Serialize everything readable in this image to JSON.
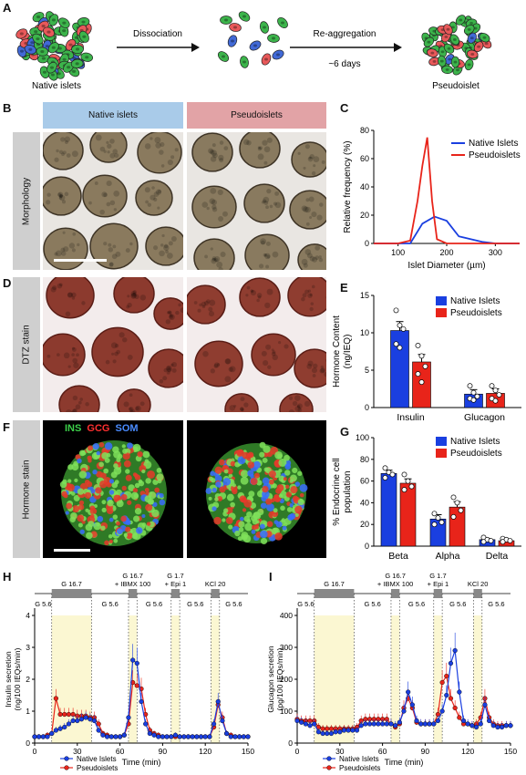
{
  "panel_letters": {
    "A": "A",
    "B": "B",
    "C": "C",
    "D": "D",
    "E": "E",
    "F": "F",
    "G": "G",
    "H": "H",
    "I": "I"
  },
  "schematic": {
    "native_label": "Native islets",
    "step1": "Dissociation",
    "step2": "Re-aggregation",
    "step2_time": "~6 days",
    "pseudo_label": "Pseudoislet"
  },
  "headers": {
    "native": "Native islets",
    "pseudo": "Pseudoislets"
  },
  "row_labels": {
    "morphology": "Morphology",
    "dtz": "DTZ stain",
    "hormone": "Hormone stain"
  },
  "stain_legend": {
    "ins": "INS",
    "gcg": "GCG",
    "som": "SOM"
  },
  "colors": {
    "native": "#1a3fe0",
    "pseudo": "#e8241a",
    "header_native": "#a9cbe9",
    "header_pseudo": "#e2a3a6",
    "cell_green": "#3cb44b",
    "cell_red": "#e8595a",
    "cell_blue": "#4169d6",
    "shade": "#fbf7d2"
  },
  "chart_data": [
    {
      "id": "C",
      "type": "line",
      "xlabel": "Islet Diameter (µm)",
      "ylabel": "Relative frequency (%)",
      "xlim": [
        50,
        350
      ],
      "ylim": [
        0,
        80
      ],
      "xticks": [
        100,
        200,
        300
      ],
      "yticks": [
        0,
        20,
        40,
        60,
        80
      ],
      "legend": "top-right",
      "series": [
        {
          "name": "Native Islets",
          "color": "#1a3fe0",
          "x": [
            50,
            100,
            125,
            150,
            175,
            200,
            225,
            250,
            275,
            300,
            325,
            350
          ],
          "y": [
            0,
            0,
            0,
            14,
            19,
            16,
            5,
            3,
            1,
            0,
            0,
            0
          ]
        },
        {
          "name": "Pseudoislets",
          "color": "#e8241a",
          "x": [
            50,
            100,
            125,
            140,
            150,
            160,
            170,
            180,
            200,
            250,
            300,
            350
          ],
          "y": [
            0,
            0,
            2,
            30,
            55,
            75,
            30,
            3,
            0,
            0,
            0,
            0
          ]
        }
      ]
    },
    {
      "id": "E",
      "type": "bar",
      "ylabel": "Hormone Content (ng/IEQ)",
      "categories": [
        "Insulin",
        "Glucagon"
      ],
      "ylim": [
        0,
        15
      ],
      "yticks": [
        0,
        5,
        10,
        15
      ],
      "legend": "top-right",
      "series": [
        {
          "name": "Native Islets",
          "color": "#1a3fe0",
          "values": [
            10.3,
            1.8
          ],
          "errors": [
            1.2,
            0.6
          ],
          "points": [
            [
              13,
              11,
              10.5,
              8.5,
              8
            ],
            [
              2.9,
              2,
              1.5,
              1.2,
              1
            ]
          ]
        },
        {
          "name": "Pseudoislets",
          "color": "#e8241a",
          "values": [
            6.1,
            1.9
          ],
          "errors": [
            1.0,
            0.6
          ],
          "points": [
            [
              8.3,
              6.9,
              5.5,
              4.5,
              3.4
            ],
            [
              2.9,
              2.3,
              1.7,
              1.2,
              0.9
            ]
          ]
        }
      ]
    },
    {
      "id": "G",
      "type": "bar",
      "ylabel": "% Endocrine cell population",
      "categories": [
        "Beta",
        "Alpha",
        "Delta"
      ],
      "ylim": [
        0,
        100
      ],
      "yticks": [
        0,
        20,
        40,
        60,
        80,
        100
      ],
      "legend": "top-right",
      "series": [
        {
          "name": "Native Islets",
          "color": "#1a3fe0",
          "values": [
            67,
            25,
            6
          ],
          "errors": [
            3,
            4,
            1
          ],
          "points": [
            [
              72,
              68,
              66,
              63
            ],
            [
              30,
              26,
              22,
              20
            ],
            [
              8,
              6,
              5,
              4
            ]
          ]
        },
        {
          "name": "Pseudoislets",
          "color": "#e8241a",
          "values": [
            58,
            36,
            5
          ],
          "errors": [
            4,
            5,
            1
          ],
          "points": [
            [
              66,
              60,
              55,
              52
            ],
            [
              45,
              40,
              33,
              27
            ],
            [
              7,
              6,
              5,
              4
            ]
          ]
        }
      ]
    },
    {
      "id": "H",
      "type": "line",
      "xlabel": "Time (min)",
      "ylabel": "Insulin secretion (ng/100 IEQs/min)",
      "xlim": [
        0,
        150
      ],
      "ylim": [
        0,
        4
      ],
      "xticks": [
        0,
        30,
        60,
        90,
        120,
        150
      ],
      "yticks": [
        0,
        1,
        2,
        3,
        4
      ],
      "legend": "bottom-left",
      "shaded": [
        [
          12,
          40
        ],
        [
          66,
          72
        ],
        [
          96,
          102
        ],
        [
          124,
          130
        ]
      ],
      "protocol": [
        {
          "label": "G 5.6",
          "from": 0,
          "to": 12
        },
        {
          "label": "G 16.7",
          "from": 12,
          "to": 40,
          "bar": true
        },
        {
          "label": "G 5.6",
          "from": 40,
          "to": 66
        },
        {
          "label": "G 16.7\n+ IBMX 100",
          "from": 66,
          "to": 72,
          "bar": true
        },
        {
          "label": "G 5.6",
          "from": 72,
          "to": 96
        },
        {
          "label": "G 1.7\n+ Epi 1",
          "from": 96,
          "to": 102,
          "bar": true
        },
        {
          "label": "G 5.6",
          "from": 102,
          "to": 124
        },
        {
          "label": "KCl 20",
          "from": 124,
          "to": 130,
          "bar": true
        },
        {
          "label": "G 5.6",
          "from": 130,
          "to": 150
        }
      ],
      "series": [
        {
          "name": "Native Islets",
          "color": "#1a3fe0",
          "x": [
            0,
            3,
            6,
            9,
            12,
            15,
            18,
            21,
            24,
            27,
            30,
            33,
            36,
            39,
            42,
            45,
            48,
            51,
            54,
            57,
            60,
            63,
            66,
            69,
            72,
            75,
            78,
            81,
            84,
            87,
            90,
            93,
            96,
            99,
            102,
            105,
            108,
            111,
            114,
            117,
            120,
            123,
            126,
            129,
            132,
            135,
            138,
            141,
            144,
            147,
            150
          ],
          "y": [
            0.2,
            0.2,
            0.2,
            0.2,
            0.3,
            0.4,
            0.45,
            0.5,
            0.6,
            0.7,
            0.7,
            0.75,
            0.8,
            0.75,
            0.7,
            0.4,
            0.25,
            0.2,
            0.2,
            0.2,
            0.2,
            0.25,
            0.8,
            2.6,
            2.5,
            1.3,
            0.6,
            0.3,
            0.25,
            0.2,
            0.2,
            0.2,
            0.2,
            0.25,
            0.2,
            0.2,
            0.2,
            0.2,
            0.2,
            0.2,
            0.2,
            0.2,
            0.6,
            1.3,
            0.7,
            0.3,
            0.2,
            0.2,
            0.2,
            0.2,
            0.2
          ]
        },
        {
          "name": "Pseudoislets",
          "color": "#e8241a",
          "x": [
            0,
            3,
            6,
            9,
            12,
            15,
            18,
            21,
            24,
            27,
            30,
            33,
            36,
            39,
            42,
            45,
            48,
            51,
            54,
            57,
            60,
            63,
            66,
            69,
            72,
            75,
            78,
            81,
            84,
            87,
            90,
            93,
            96,
            99,
            102,
            105,
            108,
            111,
            114,
            117,
            120,
            123,
            126,
            129,
            132,
            135,
            138,
            141,
            144,
            147,
            150
          ],
          "y": [
            0.2,
            0.2,
            0.2,
            0.25,
            0.3,
            1.4,
            0.9,
            0.9,
            0.9,
            0.9,
            0.85,
            0.85,
            0.85,
            0.8,
            0.8,
            0.6,
            0.3,
            0.25,
            0.2,
            0.2,
            0.2,
            0.25,
            0.6,
            1.9,
            1.8,
            1.7,
            0.9,
            0.4,
            0.3,
            0.25,
            0.2,
            0.2,
            0.2,
            0.2,
            0.2,
            0.2,
            0.2,
            0.2,
            0.2,
            0.2,
            0.2,
            0.2,
            0.5,
            1.2,
            0.8,
            0.3,
            0.25,
            0.2,
            0.2,
            0.2,
            0.2
          ]
        }
      ]
    },
    {
      "id": "I",
      "type": "line",
      "xlabel": "Time (min)",
      "ylabel": "Glucagon secretion (pg/100 IEQs/min)",
      "xlim": [
        0,
        150
      ],
      "ylim": [
        0,
        400
      ],
      "xticks": [
        0,
        30,
        60,
        90,
        120,
        150
      ],
      "yticks": [
        0,
        100,
        200,
        300,
        400
      ],
      "legend": "bottom-left",
      "shaded": [
        [
          12,
          40
        ],
        [
          66,
          72
        ],
        [
          96,
          102
        ],
        [
          124,
          130
        ]
      ],
      "protocol": [
        {
          "label": "G 5.6",
          "from": 0,
          "to": 12
        },
        {
          "label": "G 16.7",
          "from": 12,
          "to": 40,
          "bar": true
        },
        {
          "label": "G 5.6",
          "from": 40,
          "to": 66
        },
        {
          "label": "G 16.7\n+ IBMX 100",
          "from": 66,
          "to": 72,
          "bar": true
        },
        {
          "label": "G 5.6",
          "from": 72,
          "to": 96
        },
        {
          "label": "G 1.7\n+ Epi 1",
          "from": 96,
          "to": 102,
          "bar": true
        },
        {
          "label": "G 5.6",
          "from": 102,
          "to": 124
        },
        {
          "label": "KCl 20",
          "from": 124,
          "to": 130,
          "bar": true
        },
        {
          "label": "G 5.6",
          "from": 130,
          "to": 150
        }
      ],
      "series": [
        {
          "name": "Native Islets",
          "color": "#1a3fe0",
          "x": [
            0,
            3,
            6,
            9,
            12,
            15,
            18,
            21,
            24,
            27,
            30,
            33,
            36,
            39,
            42,
            45,
            48,
            51,
            54,
            57,
            60,
            63,
            66,
            69,
            72,
            75,
            78,
            81,
            84,
            87,
            90,
            93,
            96,
            99,
            102,
            105,
            108,
            111,
            114,
            117,
            120,
            123,
            126,
            129,
            132,
            135,
            138,
            141,
            144,
            147,
            150
          ],
          "y": [
            70,
            65,
            60,
            55,
            60,
            35,
            30,
            30,
            30,
            35,
            35,
            40,
            40,
            40,
            40,
            55,
            60,
            60,
            60,
            60,
            60,
            60,
            60,
            55,
            65,
            100,
            160,
            120,
            70,
            60,
            60,
            60,
            60,
            70,
            100,
            150,
            250,
            290,
            160,
            70,
            60,
            55,
            50,
            60,
            120,
            70,
            55,
            50,
            50,
            55,
            55
          ]
        },
        {
          "name": "Pseudoislets",
          "color": "#e8241a",
          "x": [
            0,
            3,
            6,
            9,
            12,
            15,
            18,
            21,
            24,
            27,
            30,
            33,
            36,
            39,
            42,
            45,
            48,
            51,
            54,
            57,
            60,
            63,
            66,
            69,
            72,
            75,
            78,
            81,
            84,
            87,
            90,
            93,
            96,
            99,
            102,
            105,
            108,
            111,
            114,
            117,
            120,
            123,
            126,
            129,
            132,
            135,
            138,
            141,
            144,
            147,
            150
          ],
          "y": [
            75,
            70,
            70,
            70,
            70,
            50,
            45,
            45,
            45,
            45,
            45,
            45,
            45,
            45,
            50,
            70,
            75,
            75,
            75,
            75,
            75,
            75,
            60,
            50,
            60,
            110,
            140,
            110,
            65,
            60,
            60,
            60,
            60,
            90,
            190,
            210,
            140,
            110,
            80,
            60,
            60,
            55,
            60,
            80,
            140,
            80,
            60,
            55,
            55,
            55,
            55
          ]
        }
      ]
    }
  ]
}
